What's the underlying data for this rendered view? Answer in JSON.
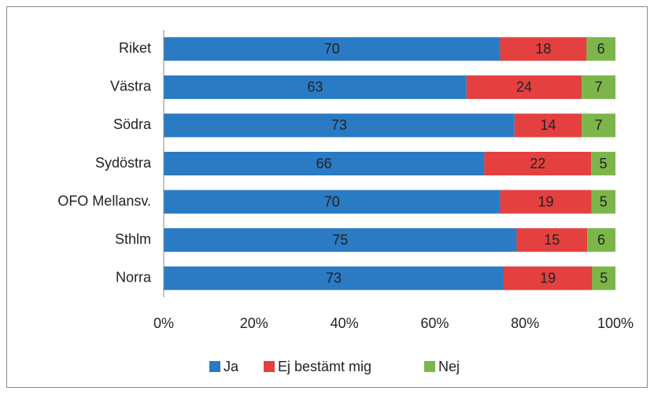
{
  "chart_data": {
    "type": "bar",
    "orientation": "horizontal",
    "stacked": "percent",
    "categories": [
      "Riket",
      "Västra",
      "Södra",
      "Sydöstra",
      "OFO Mellansv.",
      "Sthlm",
      "Norra"
    ],
    "series": [
      {
        "name": "Ja",
        "color": "#2a7bc4",
        "values": [
          70,
          63,
          73,
          66,
          70,
          75,
          73
        ]
      },
      {
        "name": "Ej bestämt mig",
        "color": "#e3403f",
        "values": [
          18,
          24,
          14,
          22,
          19,
          15,
          19
        ]
      },
      {
        "name": "Nej",
        "color": "#7cb64a",
        "values": [
          6,
          7,
          7,
          5,
          5,
          6,
          5
        ]
      }
    ],
    "xlim": [
      0,
      100
    ],
    "xticks": [
      {
        "value": 0,
        "label": "0%"
      },
      {
        "value": 20,
        "label": "20%"
      },
      {
        "value": 40,
        "label": "40%"
      },
      {
        "value": 60,
        "label": "60%"
      },
      {
        "value": 80,
        "label": "80%"
      },
      {
        "value": 100,
        "label": "100%"
      }
    ],
    "legend": "bottom"
  }
}
